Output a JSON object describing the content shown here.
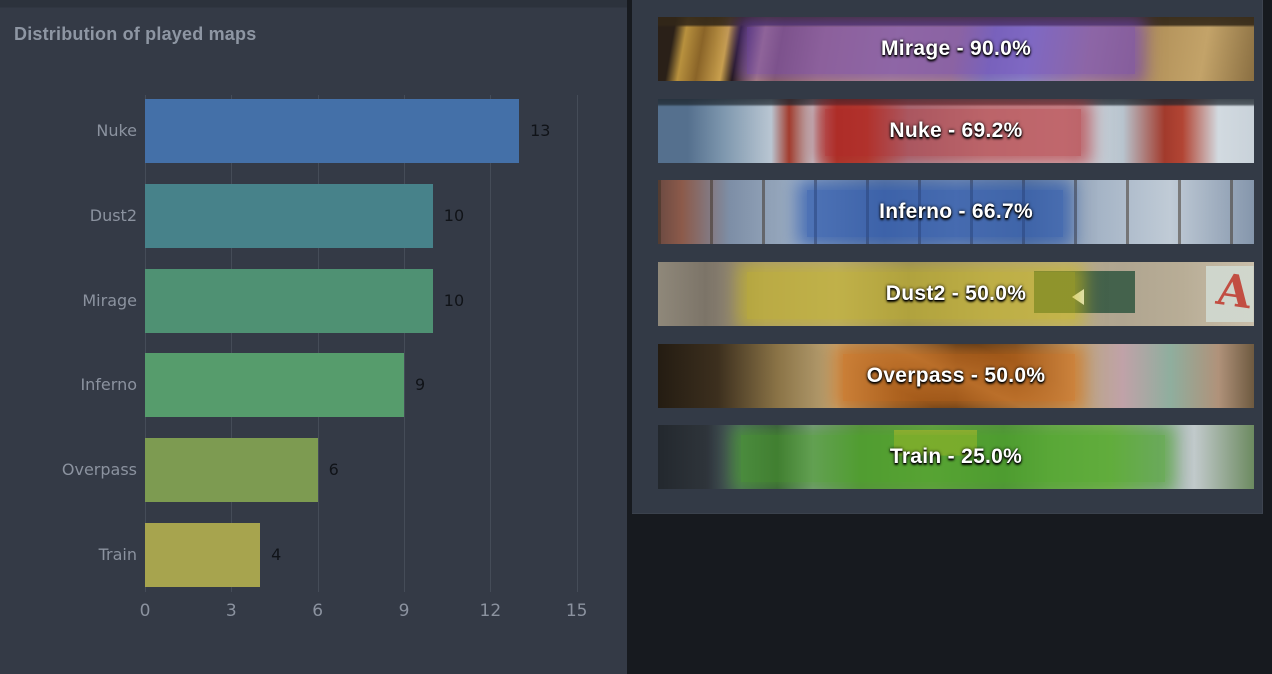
{
  "page": {
    "background": "#171a1f",
    "panel_background": "#343a46",
    "card_background": "#333a46"
  },
  "chart_data": {
    "type": "bar",
    "orientation": "horizontal",
    "title": "Distribution of played maps",
    "categories": [
      "Nuke",
      "Dust2",
      "Mirage",
      "Inferno",
      "Overpass",
      "Train"
    ],
    "values": [
      13,
      10,
      10,
      9,
      6,
      4
    ],
    "value_labels": [
      "13",
      "10",
      "10",
      "9",
      "6",
      "4"
    ],
    "bar_colors": [
      "#4470a8",
      "#47828a",
      "#4f9173",
      "#569c6c",
      "#7d9b51",
      "#a7a44e"
    ],
    "xticks": [
      "0",
      "3",
      "6",
      "9",
      "12",
      "15"
    ],
    "xtick_values": [
      0,
      3,
      6,
      9,
      12,
      15
    ],
    "xlim": [
      0,
      16.7
    ],
    "grid": true,
    "legend": "none",
    "title_color": "#8e96a3",
    "axis_label_color": "#8b929f",
    "value_label_color": "#101318",
    "gridline_color": "#454c58"
  },
  "map_stats": {
    "items": [
      {
        "key": "mirage",
        "map": "Mirage",
        "winrate": "90.0%",
        "label": "Mirage - 90.0%",
        "overlay_color": "rgba(106,62,196,0.62)",
        "band": [
          15,
          80
        ]
      },
      {
        "key": "nuke",
        "map": "Nuke",
        "winrate": "69.2%",
        "label": "Nuke - 69.2%",
        "overlay_color": "rgba(178,30,36,0.62)",
        "band": [
          28,
          71
        ]
      },
      {
        "key": "inferno",
        "map": "Inferno",
        "winrate": "66.7%",
        "label": "Inferno - 66.7%",
        "overlay_color": "rgba(31,79,174,0.62)",
        "band": [
          25,
          68
        ]
      },
      {
        "key": "dust2",
        "map": "Dust2",
        "winrate": "50.0%",
        "label": "Dust2 - 50.0%",
        "overlay_color": "rgba(205,190,20,0.55)",
        "band": [
          15,
          70
        ]
      },
      {
        "key": "overpass",
        "map": "Overpass",
        "winrate": "50.0%",
        "label": "Overpass - 50.0%",
        "overlay_color": "rgba(216,106,16,0.60)",
        "band": [
          31,
          70
        ]
      },
      {
        "key": "train",
        "map": "Train",
        "winrate": "25.0%",
        "label": "Train - 25.0%",
        "overlay_color": "rgba(70,170,30,0.58)",
        "band": [
          14,
          85
        ]
      }
    ]
  }
}
